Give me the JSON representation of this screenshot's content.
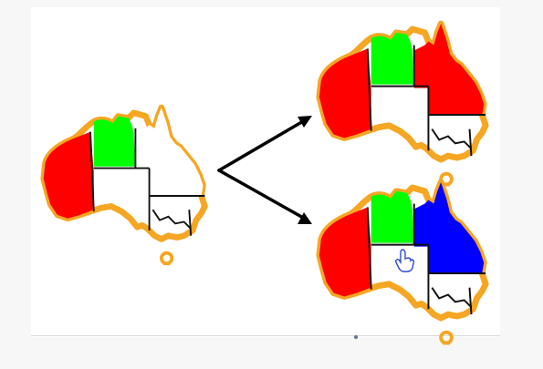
{
  "colors": {
    "outline": "#f5a623",
    "border": "#111111",
    "arrow": "#000000",
    "wa": "#ff0000",
    "nt": "#00ff00",
    "qld_option_1": "#ff0000",
    "qld_option_2": "#0000ff",
    "unfilled": "#ffffff"
  },
  "diagram": {
    "source": {
      "name": "partial-coloring",
      "regions": {
        "wa": "wa",
        "nt": "nt",
        "qld": "unfilled"
      }
    },
    "branches": [
      {
        "name": "qld-colored-red",
        "regions": {
          "wa": "wa",
          "nt": "nt",
          "qld": "qld_option_1"
        }
      },
      {
        "name": "qld-colored-blue",
        "regions": {
          "wa": "wa",
          "nt": "nt",
          "qld": "qld_option_2"
        }
      }
    ]
  },
  "icons": {
    "pointer": "hand-pointer-icon"
  }
}
